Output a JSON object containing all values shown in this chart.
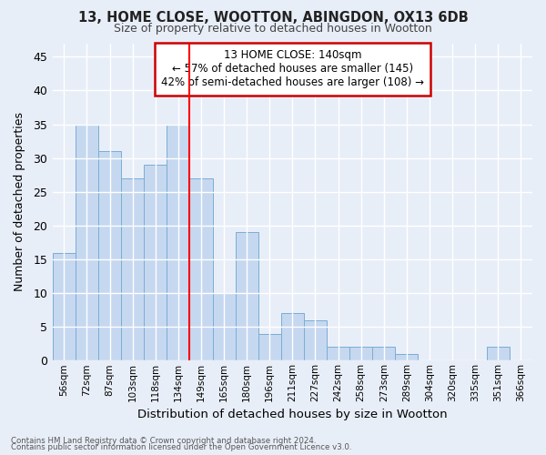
{
  "title1": "13, HOME CLOSE, WOOTTON, ABINGDON, OX13 6DB",
  "title2": "Size of property relative to detached houses in Wootton",
  "xlabel": "Distribution of detached houses by size in Wootton",
  "ylabel": "Number of detached properties",
  "categories": [
    "56sqm",
    "72sqm",
    "87sqm",
    "103sqm",
    "118sqm",
    "134sqm",
    "149sqm",
    "165sqm",
    "180sqm",
    "196sqm",
    "211sqm",
    "227sqm",
    "242sqm",
    "258sqm",
    "273sqm",
    "289sqm",
    "304sqm",
    "320sqm",
    "335sqm",
    "351sqm",
    "366sqm"
  ],
  "values": [
    16,
    35,
    31,
    27,
    29,
    35,
    27,
    10,
    19,
    4,
    7,
    6,
    2,
    2,
    2,
    1,
    0,
    0,
    0,
    2,
    0
  ],
  "bar_color": "#c5d8f0",
  "bar_edge_color": "#7aadd4",
  "bg_color": "#e8eef8",
  "grid_color": "#ffffff",
  "annotation_box_text": "13 HOME CLOSE: 140sqm\n← 57% of detached houses are smaller (145)\n42% of semi-detached houses are larger (108) →",
  "annotation_box_color": "#ffffff",
  "annotation_box_edge": "#cc0000",
  "red_line_index": 5,
  "footer1": "Contains HM Land Registry data © Crown copyright and database right 2024.",
  "footer2": "Contains public sector information licensed under the Open Government Licence v3.0.",
  "ylim": [
    0,
    47
  ],
  "yticks": [
    0,
    5,
    10,
    15,
    20,
    25,
    30,
    35,
    40,
    45
  ]
}
